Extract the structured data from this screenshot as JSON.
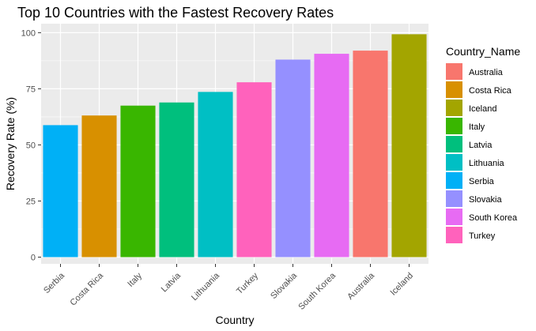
{
  "chart_data": {
    "type": "bar",
    "title": "Top 10 Countries with the Fastest Recovery Rates",
    "xlabel": "Country",
    "ylabel": "Recovery Rate (%)",
    "ylim": [
      -3,
      104
    ],
    "yticks": [
      0,
      25,
      50,
      75,
      100
    ],
    "grid": true,
    "legend_position": "right",
    "categories": [
      "Serbia",
      "Costa Rica",
      "Italy",
      "Latvia",
      "Lithuania",
      "Turkey",
      "Slovakia",
      "South Korea",
      "Australia",
      "Iceland"
    ],
    "values": [
      58.8,
      63.1,
      67.5,
      68.9,
      73.6,
      77.9,
      88.0,
      90.6,
      92.0,
      99.3
    ],
    "legend": {
      "title": "Country_Name",
      "entries": [
        "Australia",
        "Costa Rica",
        "Iceland",
        "Italy",
        "Latvia",
        "Lithuania",
        "Serbia",
        "Slovakia",
        "South Korea",
        "Turkey"
      ]
    },
    "colors": {
      "Australia": "#F8766D",
      "Costa Rica": "#D89000",
      "Iceland": "#A3A500",
      "Italy": "#39B600",
      "Latvia": "#00BF7D",
      "Lithuania": "#00BFC4",
      "Serbia": "#00B0F6",
      "Slovakia": "#9590FF",
      "South Korea": "#E76BF3",
      "Turkey": "#FF62BC"
    },
    "panel_background": "#EBEBEB",
    "grid_color": "#FFFFFF"
  }
}
